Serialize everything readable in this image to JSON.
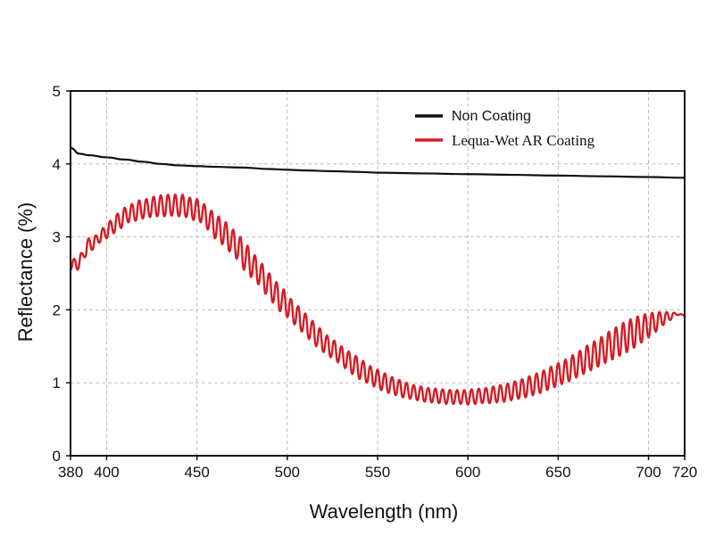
{
  "chart_data": {
    "type": "line",
    "title": "",
    "xlabel": "Wavelength (nm)",
    "ylabel": "Reflectance (%)",
    "xlim": [
      380,
      720
    ],
    "ylim": [
      0,
      5
    ],
    "x_ticks": [
      380,
      400,
      450,
      500,
      550,
      600,
      650,
      700,
      720
    ],
    "y_ticks": [
      0,
      1,
      2,
      3,
      4,
      5
    ],
    "grid": true,
    "legend_position": "top-right",
    "series": [
      {
        "name": "Non Coating",
        "color": "#111111",
        "points": [
          [
            380,
            4.22
          ],
          [
            385,
            4.14
          ],
          [
            390,
            4.12
          ],
          [
            400,
            4.09
          ],
          [
            410,
            4.06
          ],
          [
            420,
            4.03
          ],
          [
            430,
            4.0
          ],
          [
            440,
            3.98
          ],
          [
            450,
            3.97
          ],
          [
            460,
            3.96
          ],
          [
            475,
            3.95
          ],
          [
            490,
            3.93
          ],
          [
            500,
            3.92
          ],
          [
            510,
            3.91
          ],
          [
            525,
            3.9
          ],
          [
            540,
            3.89
          ],
          [
            550,
            3.88
          ],
          [
            575,
            3.87
          ],
          [
            600,
            3.86
          ],
          [
            625,
            3.85
          ],
          [
            650,
            3.84
          ],
          [
            675,
            3.83
          ],
          [
            700,
            3.82
          ],
          [
            720,
            3.81
          ]
        ]
      },
      {
        "name": "Lequa-Wet AR Coating",
        "color": "#d41c24",
        "points": [
          [
            380,
            2.55
          ],
          [
            382,
            2.7
          ],
          [
            384,
            2.55
          ],
          [
            386,
            2.78
          ],
          [
            388,
            2.72
          ],
          [
            390,
            2.98
          ],
          [
            392,
            2.82
          ],
          [
            394,
            3.02
          ],
          [
            396,
            2.92
          ],
          [
            398,
            3.12
          ],
          [
            400,
            2.98
          ],
          [
            402,
            3.22
          ],
          [
            404,
            3.05
          ],
          [
            406,
            3.32
          ],
          [
            408,
            3.12
          ],
          [
            410,
            3.4
          ],
          [
            412,
            3.2
          ],
          [
            414,
            3.45
          ],
          [
            416,
            3.22
          ],
          [
            418,
            3.5
          ],
          [
            420,
            3.25
          ],
          [
            422,
            3.52
          ],
          [
            424,
            3.27
          ],
          [
            426,
            3.55
          ],
          [
            428,
            3.28
          ],
          [
            430,
            3.57
          ],
          [
            432,
            3.28
          ],
          [
            434,
            3.58
          ],
          [
            436,
            3.29
          ],
          [
            438,
            3.58
          ],
          [
            440,
            3.28
          ],
          [
            442,
            3.58
          ],
          [
            444,
            3.27
          ],
          [
            446,
            3.54
          ],
          [
            448,
            3.23
          ],
          [
            450,
            3.52
          ],
          [
            452,
            3.2
          ],
          [
            454,
            3.45
          ],
          [
            456,
            3.1
          ],
          [
            458,
            3.36
          ],
          [
            460,
            2.98
          ],
          [
            462,
            3.28
          ],
          [
            464,
            2.9
          ],
          [
            466,
            3.2
          ],
          [
            468,
            2.8
          ],
          [
            470,
            3.1
          ],
          [
            472,
            2.7
          ],
          [
            474,
            3.0
          ],
          [
            476,
            2.55
          ],
          [
            478,
            2.88
          ],
          [
            480,
            2.45
          ],
          [
            482,
            2.75
          ],
          [
            484,
            2.35
          ],
          [
            486,
            2.63
          ],
          [
            488,
            2.22
          ],
          [
            490,
            2.5
          ],
          [
            492,
            2.1
          ],
          [
            494,
            2.38
          ],
          [
            496,
            1.98
          ],
          [
            498,
            2.28
          ],
          [
            500,
            1.9
          ],
          [
            502,
            2.15
          ],
          [
            504,
            1.8
          ],
          [
            506,
            2.05
          ],
          [
            508,
            1.7
          ],
          [
            510,
            1.95
          ],
          [
            512,
            1.6
          ],
          [
            514,
            1.85
          ],
          [
            516,
            1.5
          ],
          [
            518,
            1.75
          ],
          [
            520,
            1.42
          ],
          [
            522,
            1.65
          ],
          [
            524,
            1.35
          ],
          [
            526,
            1.58
          ],
          [
            528,
            1.28
          ],
          [
            530,
            1.5
          ],
          [
            532,
            1.2
          ],
          [
            534,
            1.43
          ],
          [
            536,
            1.12
          ],
          [
            538,
            1.37
          ],
          [
            540,
            1.05
          ],
          [
            542,
            1.3
          ],
          [
            544,
            1.0
          ],
          [
            546,
            1.23
          ],
          [
            548,
            0.95
          ],
          [
            550,
            1.18
          ],
          [
            552,
            0.9
          ],
          [
            554,
            1.13
          ],
          [
            556,
            0.86
          ],
          [
            558,
            1.08
          ],
          [
            560,
            0.83
          ],
          [
            562,
            1.04
          ],
          [
            564,
            0.8
          ],
          [
            566,
            1.0
          ],
          [
            568,
            0.78
          ],
          [
            570,
            0.97
          ],
          [
            572,
            0.76
          ],
          [
            574,
            0.95
          ],
          [
            576,
            0.74
          ],
          [
            578,
            0.93
          ],
          [
            580,
            0.73
          ],
          [
            582,
            0.92
          ],
          [
            584,
            0.72
          ],
          [
            586,
            0.91
          ],
          [
            588,
            0.71
          ],
          [
            590,
            0.9
          ],
          [
            592,
            0.71
          ],
          [
            594,
            0.9
          ],
          [
            596,
            0.71
          ],
          [
            598,
            0.9
          ],
          [
            600,
            0.7
          ],
          [
            602,
            0.91
          ],
          [
            604,
            0.71
          ],
          [
            606,
            0.92
          ],
          [
            608,
            0.72
          ],
          [
            610,
            0.93
          ],
          [
            612,
            0.72
          ],
          [
            614,
            0.95
          ],
          [
            616,
            0.73
          ],
          [
            618,
            0.97
          ],
          [
            620,
            0.74
          ],
          [
            622,
            0.99
          ],
          [
            624,
            0.76
          ],
          [
            626,
            1.02
          ],
          [
            628,
            0.78
          ],
          [
            630,
            1.05
          ],
          [
            632,
            0.8
          ],
          [
            634,
            1.09
          ],
          [
            636,
            0.83
          ],
          [
            638,
            1.13
          ],
          [
            640,
            0.86
          ],
          [
            642,
            1.17
          ],
          [
            644,
            0.9
          ],
          [
            646,
            1.22
          ],
          [
            648,
            0.94
          ],
          [
            650,
            1.27
          ],
          [
            652,
            0.98
          ],
          [
            654,
            1.32
          ],
          [
            656,
            1.02
          ],
          [
            658,
            1.38
          ],
          [
            660,
            1.07
          ],
          [
            662,
            1.44
          ],
          [
            664,
            1.12
          ],
          [
            666,
            1.51
          ],
          [
            668,
            1.17
          ],
          [
            670,
            1.57
          ],
          [
            672,
            1.22
          ],
          [
            674,
            1.63
          ],
          [
            676,
            1.27
          ],
          [
            678,
            1.7
          ],
          [
            680,
            1.32
          ],
          [
            682,
            1.76
          ],
          [
            684,
            1.37
          ],
          [
            686,
            1.82
          ],
          [
            688,
            1.42
          ],
          [
            690,
            1.87
          ],
          [
            692,
            1.48
          ],
          [
            694,
            1.91
          ],
          [
            696,
            1.55
          ],
          [
            698,
            1.94
          ],
          [
            700,
            1.62
          ],
          [
            702,
            1.96
          ],
          [
            704,
            1.7
          ],
          [
            706,
            1.97
          ],
          [
            708,
            1.79
          ],
          [
            710,
            1.97
          ],
          [
            712,
            1.86
          ],
          [
            714,
            1.96
          ],
          [
            716,
            1.93
          ],
          [
            718,
            1.94
          ],
          [
            720,
            1.92
          ]
        ]
      }
    ]
  }
}
